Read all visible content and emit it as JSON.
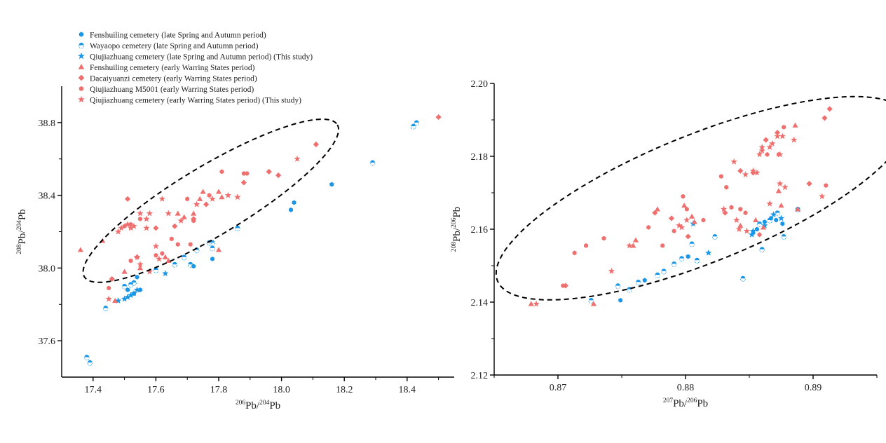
{
  "colors": {
    "blue": "#1a96e6",
    "red": "#ef6f6f",
    "axis": "#000000"
  },
  "legend": [
    {
      "label": "Fenshuiling cemetery (late Spring and Autumn period)",
      "marker": "hexagon",
      "color": "blue"
    },
    {
      "label": "Wayaopo cemetery (late Spring and Autumn period)",
      "marker": "halfcircle",
      "color": "blue"
    },
    {
      "label": "Qiujiazhuang cemetery (late Spring and Autumn period) (This study)",
      "marker": "star",
      "color": "blue"
    },
    {
      "label": "Fenshuiling cemetery (early Warring States period)",
      "marker": "triangle",
      "color": "red"
    },
    {
      "label": "Dacaiyuanzi cemetery (early Warring States period)",
      "marker": "diamond",
      "color": "red"
    },
    {
      "label": "Qiujiazhuang M5001 (early Warring States period)",
      "marker": "hexagon",
      "color": "red"
    },
    {
      "label": "Qiujiazhuang cemetery (early Warring States period) (This study)",
      "marker": "star",
      "color": "red"
    }
  ],
  "chart_data": [
    {
      "type": "scatter",
      "title": "",
      "xlabel": {
        "sup1": "206",
        "base1": "Pb/",
        "sup2": "204",
        "base2": "Pb"
      },
      "ylabel": {
        "sup1": "208",
        "base1": "Pb/",
        "sup2": "204",
        "base2": "Pb"
      },
      "xlim": [
        17.3,
        18.55
      ],
      "ylim": [
        37.4,
        39.0
      ],
      "xticks": [
        17.4,
        17.6,
        17.8,
        18.0,
        18.2,
        18.4
      ],
      "xtick_labels": [
        "17.4",
        "17.6",
        "17.8",
        "18.0",
        "18.2",
        "18.4"
      ],
      "xminor": [
        17.5,
        17.7,
        17.9,
        18.1,
        18.3,
        18.5
      ],
      "yticks": [
        37.6,
        38.0,
        38.4,
        38.8
      ],
      "ytick_labels": [
        "37.6",
        "38.0",
        "38.4",
        "38.8"
      ],
      "yminor": [
        37.8,
        38.2,
        38.6
      ],
      "ellipse": {
        "cx": 17.775,
        "cy": 38.37,
        "rx": 0.47,
        "ry": 0.19,
        "angle_deg": -31
      },
      "legend_position": "top-left",
      "series": [
        {
          "legend_index": 0,
          "points": [
            [
              17.51,
              37.88
            ],
            [
              17.53,
              37.86
            ],
            [
              17.55,
              37.88
            ],
            [
              17.54,
              37.95
            ],
            [
              17.72,
              38.01
            ],
            [
              17.78,
              38.05
            ],
            [
              18.03,
              38.32
            ],
            [
              18.04,
              38.36
            ],
            [
              18.16,
              38.46
            ]
          ]
        },
        {
          "legend_index": 1,
          "points": [
            [
              17.38,
              37.51
            ],
            [
              17.39,
              37.48
            ],
            [
              17.44,
              37.78
            ],
            [
              17.5,
              37.9
            ],
            [
              17.52,
              37.91
            ],
            [
              17.53,
              37.92
            ],
            [
              17.6,
              37.99
            ],
            [
              17.66,
              38.02
            ],
            [
              17.71,
              38.02
            ],
            [
              17.73,
              38.1
            ],
            [
              17.77,
              38.14
            ],
            [
              17.78,
              38.14
            ],
            [
              17.78,
              38.11
            ],
            [
              17.86,
              38.22
            ],
            [
              18.29,
              38.58
            ],
            [
              18.42,
              38.78
            ],
            [
              18.43,
              38.8
            ],
            [
              17.69,
              38.06
            ]
          ]
        },
        {
          "legend_index": 2,
          "points": [
            [
              17.48,
              37.82
            ],
            [
              17.51,
              37.84
            ],
            [
              17.53,
              37.86
            ],
            [
              17.54,
              37.88
            ],
            [
              17.52,
              37.85
            ],
            [
              17.63,
              37.97
            ],
            [
              17.5,
              37.83
            ]
          ]
        },
        {
          "legend_index": 3,
          "points": [
            [
              17.36,
              38.1
            ],
            [
              17.43,
              38.15
            ],
            [
              17.47,
              37.82
            ],
            [
              17.5,
              37.98
            ],
            [
              17.55,
              38.0
            ],
            [
              17.72,
              38.3
            ],
            [
              17.74,
              38.38
            ],
            [
              17.75,
              38.42
            ],
            [
              17.67,
              38.3
            ],
            [
              17.69,
              38.28
            ],
            [
              17.8,
              38.42
            ],
            [
              17.81,
              38.39
            ],
            [
              17.8,
              38.1
            ],
            [
              17.63,
              38.06
            ],
            [
              17.64,
              38.04
            ]
          ]
        },
        {
          "legend_index": 4,
          "points": [
            [
              17.46,
              37.94
            ],
            [
              17.51,
              38.38
            ],
            [
              17.6,
              38.22
            ],
            [
              17.66,
              38.23
            ],
            [
              17.76,
              38.35
            ],
            [
              17.88,
              38.47
            ],
            [
              17.96,
              38.53
            ],
            [
              17.99,
              38.51
            ],
            [
              18.11,
              38.68
            ],
            [
              18.5,
              38.83
            ],
            [
              17.54,
              38.06
            ],
            [
              17.72,
              38.27
            ]
          ]
        },
        {
          "legend_index": 5,
          "points": [
            [
              17.45,
              37.89
            ],
            [
              17.5,
              38.23
            ],
            [
              17.52,
              38.24
            ],
            [
              17.55,
              38.27
            ],
            [
              17.6,
              38.07
            ],
            [
              17.62,
              38.08
            ],
            [
              17.65,
              38.16
            ],
            [
              17.67,
              38.13
            ],
            [
              17.71,
              38.13
            ],
            [
              17.72,
              38.26
            ],
            [
              17.77,
              38.4
            ],
            [
              17.81,
              38.53
            ],
            [
              17.88,
              38.52
            ],
            [
              17.89,
              38.52
            ],
            [
              17.7,
              38.38
            ],
            [
              17.52,
              38.04
            ]
          ]
        },
        {
          "legend_index": 6,
          "points": [
            [
              17.45,
              37.83
            ],
            [
              17.48,
              38.2
            ],
            [
              17.49,
              38.22
            ],
            [
              17.51,
              38.24
            ],
            [
              17.52,
              38.22
            ],
            [
              17.53,
              38.23
            ],
            [
              17.55,
              38.3
            ],
            [
              17.57,
              38.27
            ],
            [
              17.58,
              38.3
            ],
            [
              17.57,
              38.22
            ],
            [
              17.6,
              38.12
            ],
            [
              17.62,
              38.38
            ],
            [
              17.64,
              38.3
            ],
            [
              17.68,
              38.26
            ],
            [
              17.73,
              38.35
            ],
            [
              17.78,
              38.38
            ],
            [
              17.83,
              38.4
            ],
            [
              17.86,
              38.39
            ],
            [
              17.54,
              38.06
            ],
            [
              17.55,
              38.02
            ],
            [
              17.58,
              37.98
            ],
            [
              17.61,
              38.05
            ],
            [
              18.05,
              38.6
            ]
          ]
        }
      ]
    },
    {
      "type": "scatter",
      "title": "",
      "xlabel": {
        "sup1": "207",
        "base1": "Pb/",
        "sup2": "206",
        "base2": "Pb"
      },
      "ylabel": {
        "sup1": "208",
        "base1": "Pb/",
        "sup2": "206",
        "base2": "Pb"
      },
      "xlim": [
        0.865,
        0.895
      ],
      "ylim": [
        2.12,
        2.2
      ],
      "xticks": [
        0.87,
        0.88,
        0.89
      ],
      "xtick_labels": [
        "0.87",
        "0.88",
        "0.89"
      ],
      "xminor": [
        0.865,
        0.875,
        0.885,
        0.895
      ],
      "yticks": [
        2.12,
        2.14,
        2.16,
        2.18,
        2.2
      ],
      "ytick_labels": [
        "2.12",
        "2.14",
        "2.16",
        "2.18",
        "2.20"
      ],
      "yminor": [
        2.13,
        2.15,
        2.17,
        2.19
      ],
      "ellipse": {
        "cx": 0.8813,
        "cy": 2.1685,
        "rx": 0.0173,
        "ry": 0.0175,
        "angle_deg": -22
      },
      "legend_position": "none",
      "series": [
        {
          "legend_index": 0,
          "points": [
            [
              0.8749,
              2.1405
            ],
            [
              0.8768,
              2.146
            ],
            [
              0.8802,
              2.1525
            ],
            [
              0.8853,
              2.159
            ],
            [
              0.8856,
              2.16
            ],
            [
              0.8862,
              2.162
            ],
            [
              0.8867,
              2.163
            ],
            [
              0.8871,
              2.1625
            ],
            [
              0.8876,
              2.1615
            ]
          ]
        },
        {
          "legend_index": 1,
          "points": [
            [
              0.8726,
              2.1405
            ],
            [
              0.8747,
              2.1445
            ],
            [
              0.8756,
              2.1435
            ],
            [
              0.8763,
              2.1455
            ],
            [
              0.8778,
              2.1475
            ],
            [
              0.8783,
              2.1485
            ],
            [
              0.8791,
              2.1505
            ],
            [
              0.8797,
              2.152
            ],
            [
              0.8805,
              2.156
            ],
            [
              0.8809,
              2.1515
            ],
            [
              0.8823,
              2.158
            ],
            [
              0.8845,
              2.1465
            ],
            [
              0.8858,
              2.1615
            ],
            [
              0.886,
              2.1545
            ],
            [
              0.8877,
              2.158
            ],
            [
              0.8888,
              2.1655
            ],
            [
              0.8872,
              2.1645
            ],
            [
              0.8866,
              2.1625
            ]
          ]
        },
        {
          "legend_index": 2,
          "points": [
            [
              0.8806,
              2.1615
            ],
            [
              0.8818,
              2.1535
            ],
            [
              0.8853,
              2.1595
            ],
            [
              0.8862,
              2.161
            ],
            [
              0.8869,
              2.164
            ],
            [
              0.8875,
              2.163
            ],
            [
              0.8852,
              2.1585
            ]
          ]
        },
        {
          "legend_index": 3,
          "points": [
            [
              0.8679,
              2.1395
            ],
            [
              0.8728,
              2.1395
            ],
            [
              0.8759,
              2.1555
            ],
            [
              0.8761,
              2.157
            ],
            [
              0.8778,
              2.1655
            ],
            [
              0.8799,
              2.1665
            ],
            [
              0.8805,
              2.1635
            ],
            [
              0.8807,
              2.162
            ],
            [
              0.8843,
              2.161
            ],
            [
              0.8855,
              2.1625
            ],
            [
              0.8873,
              2.1705
            ],
            [
              0.8875,
              2.1665
            ],
            [
              0.8886,
              2.1885
            ],
            [
              0.8888,
              2.1655
            ],
            [
              0.8861,
              2.1605
            ]
          ]
        },
        {
          "legend_index": 4,
          "points": [
            [
              0.8706,
              2.1445
            ],
            [
              0.8776,
              2.1645
            ],
            [
              0.8789,
              2.163
            ],
            [
              0.8802,
              2.158
            ],
            [
              0.8831,
              2.1645
            ],
            [
              0.8843,
              2.176
            ],
            [
              0.8853,
              2.1755
            ],
            [
              0.8863,
              2.1845
            ],
            [
              0.8872,
              2.1865
            ],
            [
              0.8909,
              2.1905
            ],
            [
              0.8913,
              2.193
            ],
            [
              0.8897,
              2.1725
            ]
          ]
        },
        {
          "legend_index": 5,
          "points": [
            [
              0.8704,
              2.1445
            ],
            [
              0.8713,
              2.1535
            ],
            [
              0.8722,
              2.1555
            ],
            [
              0.8736,
              2.1575
            ],
            [
              0.8771,
              2.1605
            ],
            [
              0.8782,
              2.1555
            ],
            [
              0.8791,
              2.1595
            ],
            [
              0.8798,
              2.169
            ],
            [
              0.8801,
              2.1655
            ],
            [
              0.8814,
              2.1625
            ],
            [
              0.8828,
              2.1745
            ],
            [
              0.8832,
              2.1715
            ],
            [
              0.8836,
              2.166
            ],
            [
              0.8843,
              2.1655
            ],
            [
              0.8847,
              2.1645
            ],
            [
              0.8858,
              2.1585
            ],
            [
              0.8864,
              2.1805
            ],
            [
              0.8877,
              2.188
            ],
            [
              0.891,
              2.172
            ],
            [
              0.8873,
              2.1805
            ]
          ]
        },
        {
          "legend_index": 6,
          "points": [
            [
              0.8683,
              2.1395
            ],
            [
              0.8742,
              2.1485
            ],
            [
              0.8756,
              2.1555
            ],
            [
              0.8795,
              2.161
            ],
            [
              0.8797,
              2.1605
            ],
            [
              0.8801,
              2.1625
            ],
            [
              0.883,
              2.1655
            ],
            [
              0.8838,
              2.1785
            ],
            [
              0.8847,
              2.175
            ],
            [
              0.8853,
              2.176
            ],
            [
              0.8856,
              2.1755
            ],
            [
              0.8858,
              2.1805
            ],
            [
              0.886,
              2.1825
            ],
            [
              0.886,
              2.1815
            ],
            [
              0.8866,
              2.1825
            ],
            [
              0.8868,
              2.1835
            ],
            [
              0.8872,
              2.1855
            ],
            [
              0.8874,
              2.1805
            ],
            [
              0.8876,
              2.1855
            ],
            [
              0.8878,
              2.1715
            ],
            [
              0.8874,
              2.1725
            ],
            [
              0.8885,
              2.1845
            ],
            [
              0.8907,
              2.169
            ],
            [
              0.8866,
              2.167
            ],
            [
              0.884,
              2.1625
            ],
            [
              0.8842,
              2.16
            ],
            [
              0.8848,
              2.1595
            ]
          ]
        }
      ]
    }
  ]
}
